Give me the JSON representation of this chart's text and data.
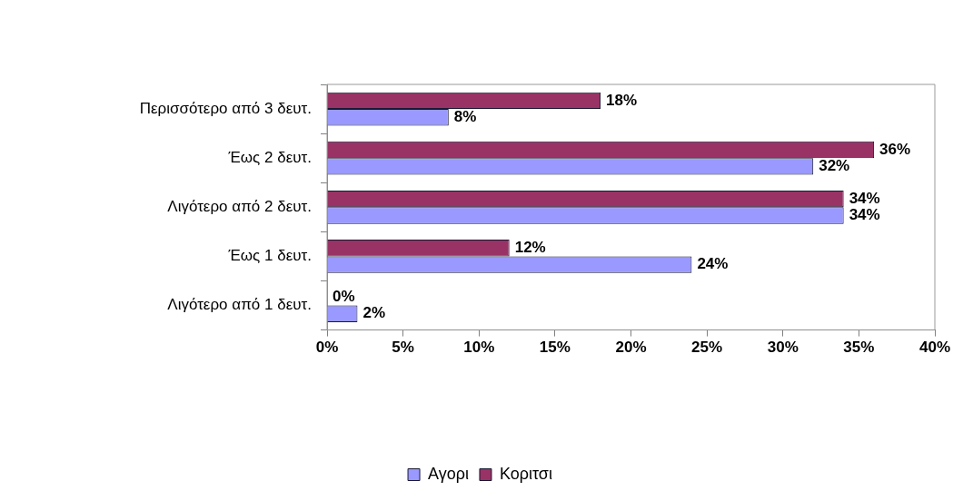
{
  "chart_data": {
    "type": "bar",
    "orientation": "horizontal",
    "categories": [
      "Περισσότερο από 3 δευτ.",
      "Έως 2 δευτ.",
      "Λιγότερο από 2 δευτ.",
      "Έως 1 δευτ.",
      "Λιγότερο από 1 δευτ."
    ],
    "series": [
      {
        "name": "Αγορι",
        "color": "#9999ff",
        "values": [
          8,
          32,
          34,
          24,
          2
        ],
        "value_labels": [
          "8%",
          "32%",
          "34%",
          "24%",
          "2%"
        ]
      },
      {
        "name": "Κοριτσι",
        "color": "#993366",
        "values": [
          18,
          36,
          34,
          12,
          0
        ],
        "value_labels": [
          "18%",
          "36%",
          "34%",
          "12%",
          "0%"
        ]
      }
    ],
    "xlim": [
      0,
      40
    ],
    "xticks": [
      {
        "value": 0,
        "label": "0%"
      },
      {
        "value": 5,
        "label": "5%"
      },
      {
        "value": 10,
        "label": "10%"
      },
      {
        "value": 15,
        "label": "15%"
      },
      {
        "value": 20,
        "label": "20%"
      },
      {
        "value": 25,
        "label": "25%"
      },
      {
        "value": 30,
        "label": "30%"
      },
      {
        "value": 35,
        "label": "35%"
      },
      {
        "value": 40,
        "label": "40%"
      }
    ],
    "grid": false,
    "legend": "bottom"
  }
}
